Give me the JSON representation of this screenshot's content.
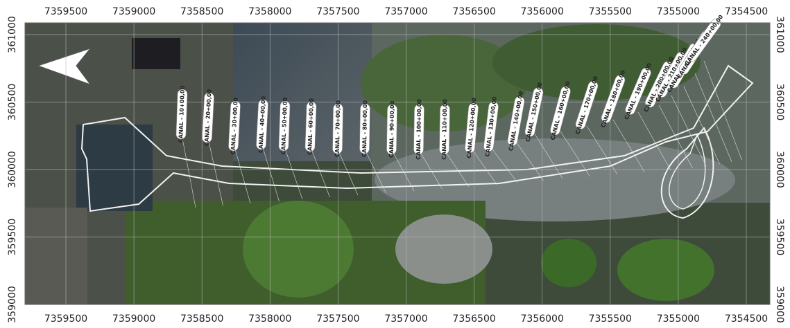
{
  "map": {
    "x_labels": [
      7359500,
      7359000,
      7358500,
      7358000,
      7357500,
      7357000,
      7356500,
      7356000,
      7355500,
      7355000,
      7354500
    ],
    "y_labels": [
      361000,
      360500,
      360000,
      359500,
      359000
    ],
    "canal_labels": [
      "CANAL - 10+00,00",
      "CANAL - 20+00,00",
      "CANAL - 30+00,00",
      "CANAL - 40+00,00",
      "CANAL - 50+00,00",
      "CANAL - 60+00,00",
      "CANAL - 70+00,00",
      "CANAL - 80+00,00",
      "CANAL - 90+00,00",
      "CANAL - 100+00,00",
      "CANAL - 110+00,00",
      "CANAL - 120+00,00",
      "CANAL - 130+00,00",
      "CANAL - 140+00,00",
      "CANAL - 150+00,00",
      "CANAL - 160+00,00",
      "CANAL - 170+00,00",
      "CANAL - 180+00,00",
      "CANAL - 190+00,00",
      "CANAL - 200+00,00",
      "CANAL - 210+00,00",
      "CANAL - 220+00,00",
      "CANAL - 230+00,00",
      "CANAL - 240+00,00"
    ]
  }
}
